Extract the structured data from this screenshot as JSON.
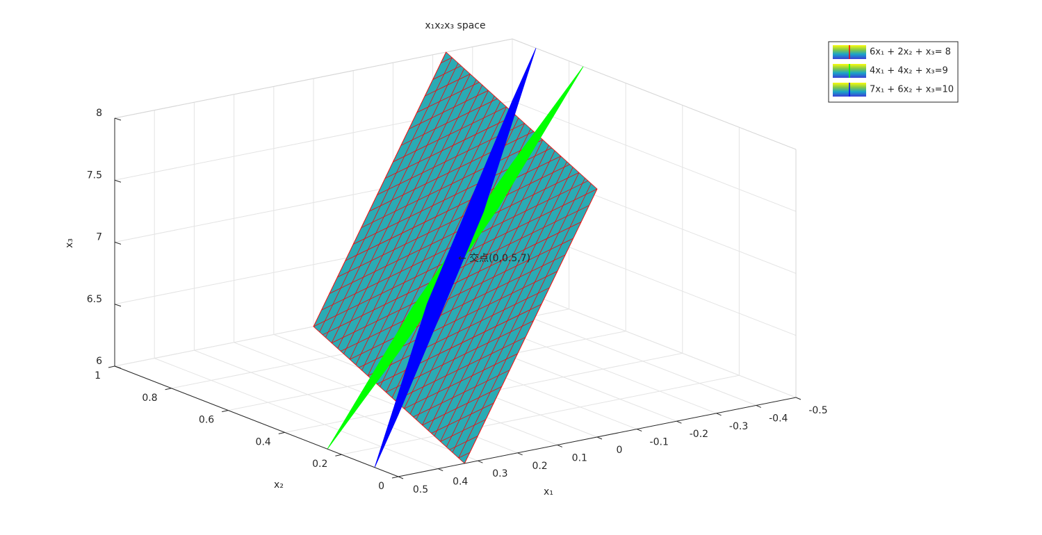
{
  "chart_data": {
    "type": "surface3d",
    "title": "x₁x₂x₃ space",
    "xlabel": "x₁",
    "ylabel": "x₂",
    "zlabel": "x₃",
    "xlim": [
      -0.5,
      0.5
    ],
    "xticks": [
      -0.5,
      -0.4,
      -0.3,
      -0.2,
      -0.1,
      0,
      0.1,
      0.2,
      0.3,
      0.4,
      0.5
    ],
    "ylim": [
      0,
      1
    ],
    "yticks": [
      0,
      0.2,
      0.4,
      0.6,
      0.8,
      1
    ],
    "zlim": [
      6,
      8
    ],
    "zticks": [
      6,
      6.5,
      7,
      7.5,
      8
    ],
    "grid": true,
    "legend": "northeast",
    "series": [
      {
        "name": "6x₁ + 2x₂ + x₃= 8",
        "coefficients": [
          6,
          2,
          1
        ],
        "rhs": 8,
        "color": "#2aabb4",
        "edge_color": "#ff0000"
      },
      {
        "name": "4x₁ + 4x₂ + x₃=9",
        "coefficients": [
          4,
          4,
          1
        ],
        "rhs": 9,
        "color": "#00ff00",
        "edge_color": "#00ff00"
      },
      {
        "name": "7x₁ + 6x₂ + x₃=10",
        "coefficients": [
          7,
          6,
          1
        ],
        "rhs": 10,
        "color": "#0000ff",
        "edge_color": "#0000ff"
      }
    ],
    "annotation": {
      "text": "←   交点(0,0.5,7)",
      "point": [
        0,
        0.5,
        7
      ]
    }
  }
}
